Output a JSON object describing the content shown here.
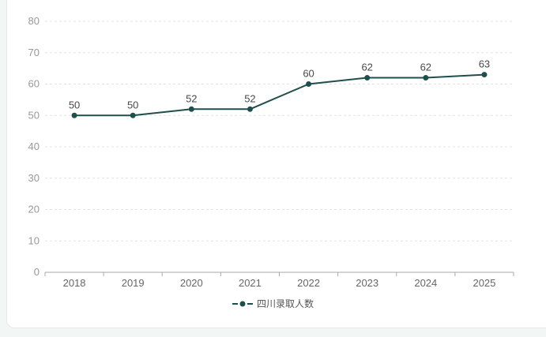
{
  "style": {
    "page_background": "#f2f7f6",
    "card_background": "#ffffff",
    "card_border": "#e7e7e7",
    "series_color": "#1f4f4c",
    "grid_color": "#e3e3e3",
    "axis_color": "#aaaaaa",
    "y_tick_label_color": "#999999",
    "x_tick_label_color": "#666666",
    "data_label_color": "#4a4a4a",
    "legend_text_color": "#555555"
  },
  "chart_data": {
    "type": "line",
    "title": "",
    "categories": [
      "2018",
      "2019",
      "2020",
      "2021",
      "2022",
      "2023",
      "2024",
      "2025"
    ],
    "series": [
      {
        "name": "四川录取人数",
        "values": [
          50,
          50,
          52,
          52,
          60,
          62,
          62,
          63
        ],
        "color": "#1f4f4c"
      }
    ],
    "ylim": [
      0,
      80
    ],
    "ytick_interval": 10,
    "yticks": [
      0,
      10,
      20,
      30,
      40,
      50,
      60,
      70,
      80
    ],
    "grid": "horizontal-dashed",
    "data_labels": true,
    "legend_position": "bottom-center",
    "marker": "filled-circle"
  },
  "legend": {
    "items": [
      {
        "label": "四川录取人数"
      }
    ]
  }
}
